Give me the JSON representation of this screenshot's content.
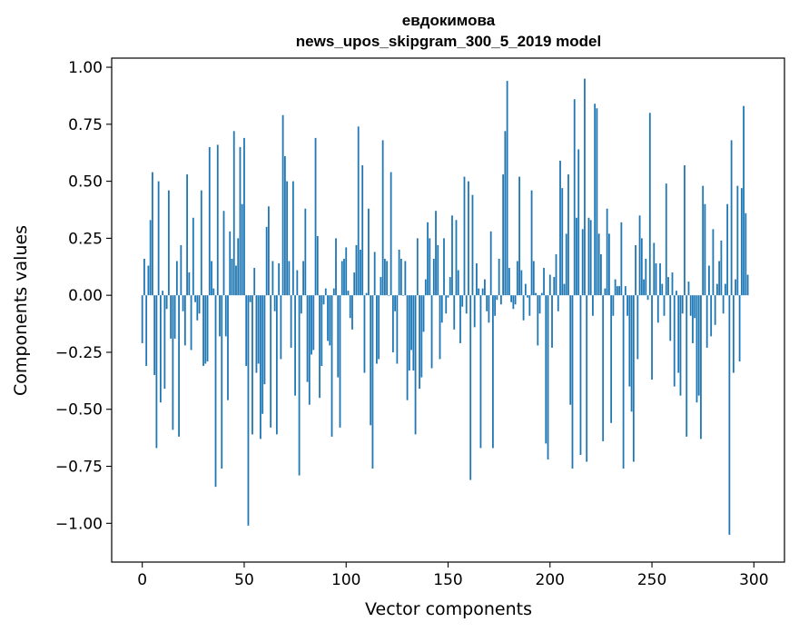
{
  "chart_data": {
    "type": "bar",
    "title_line1": "евдокимова",
    "title_line2": "news_upos_skipgram_300_5_2019 model",
    "xlabel": "Vector components",
    "ylabel": "Components values",
    "xlim": [
      -15,
      315
    ],
    "ylim": [
      -1.17,
      1.04
    ],
    "xticks": [
      0,
      50,
      100,
      150,
      200,
      250,
      300
    ],
    "yticks": [
      1.0,
      0.75,
      0.5,
      0.25,
      0.0,
      -0.25,
      -0.5,
      -0.75,
      -1.0
    ],
    "xtick_labels": [
      "0",
      "50",
      "100",
      "150",
      "200",
      "250",
      "300"
    ],
    "ytick_labels": [
      "1.00",
      "0.75",
      "0.50",
      "0.25",
      "0.00",
      "−0.25",
      "−0.50",
      "−0.75",
      "−1.00"
    ],
    "color": "#1f77b4",
    "values": [
      -0.21,
      0.16,
      -0.31,
      0.13,
      0.33,
      0.54,
      -0.35,
      -0.67,
      0.5,
      -0.47,
      0.02,
      -0.41,
      -0.06,
      0.46,
      -0.19,
      -0.59,
      -0.19,
      0.15,
      -0.62,
      0.22,
      -0.07,
      -0.22,
      0.53,
      0.1,
      -0.24,
      0.34,
      -0.03,
      -0.11,
      -0.08,
      0.46,
      -0.31,
      -0.3,
      -0.29,
      0.65,
      0.15,
      0.03,
      -0.84,
      0.66,
      -0.18,
      -0.76,
      0.37,
      -0.18,
      -0.46,
      0.28,
      0.16,
      0.72,
      0.13,
      0.25,
      0.65,
      0.4,
      0.69,
      -0.31,
      -1.01,
      -0.03,
      -0.61,
      0.12,
      -0.34,
      -0.3,
      -0.63,
      -0.52,
      -0.39,
      0.3,
      0.39,
      -0.58,
      0.15,
      -0.07,
      -0.61,
      0.14,
      -0.28,
      0.79,
      0.61,
      0.5,
      0.15,
      -0.23,
      0.5,
      -0.44,
      0.11,
      -0.79,
      -0.08,
      0.15,
      0.38,
      -0.38,
      -0.48,
      -0.26,
      -0.24,
      0.69,
      0.26,
      -0.45,
      -0.31,
      -0.04,
      0.03,
      -0.2,
      -0.22,
      -0.62,
      0.03,
      0.25,
      -0.36,
      -0.58,
      0.15,
      0.16,
      0.21,
      0.02,
      -0.1,
      -0.15,
      0.1,
      0.22,
      0.74,
      0.2,
      0.57,
      -0.34,
      0.01,
      0.38,
      -0.57,
      -0.76,
      0.19,
      -0.3,
      -0.28,
      0.08,
      0.68,
      0.16,
      0.15,
      0.0,
      0.54,
      -0.25,
      -0.07,
      -0.3,
      0.2,
      0.16,
      0.0,
      0.15,
      -0.46,
      -0.33,
      -0.24,
      -0.33,
      -0.61,
      0.25,
      -0.41,
      -0.36,
      -0.16,
      0.07,
      0.32,
      0.25,
      -0.32,
      0.16,
      0.37,
      0.22,
      -0.28,
      -0.12,
      0.25,
      -0.08,
      -0.01,
      0.08,
      0.35,
      -0.15,
      0.33,
      0.11,
      -0.21,
      -0.05,
      0.52,
      -0.08,
      0.5,
      -0.81,
      0.44,
      -0.14,
      0.14,
      0.03,
      -0.67,
      0.03,
      0.07,
      -0.07,
      -0.12,
      0.28,
      -0.67,
      -0.09,
      -0.02,
      0.16,
      -0.04,
      0.53,
      0.72,
      0.94,
      0.12,
      -0.03,
      -0.06,
      -0.04,
      0.15,
      0.52,
      0.11,
      -0.11,
      0.05,
      -0.01,
      -0.09,
      0.46,
      0.15,
      0.01,
      -0.22,
      -0.08,
      0.01,
      0.12,
      -0.65,
      -0.72,
      0.09,
      -0.23,
      0.08,
      0.18,
      -0.07,
      0.59,
      0.47,
      0.05,
      0.27,
      0.53,
      -0.48,
      -0.76,
      0.86,
      0.34,
      0.64,
      -0.7,
      0.29,
      0.95,
      -0.73,
      0.34,
      0.33,
      -0.09,
      0.84,
      0.82,
      0.27,
      0.18,
      -0.64,
      0.03,
      0.38,
      0.27,
      -0.56,
      -0.09,
      0.07,
      0.04,
      0.04,
      0.32,
      -0.76,
      0.04,
      -0.09,
      -0.4,
      -0.51,
      -0.73,
      0.22,
      -0.28,
      0.35,
      0.25,
      0.07,
      0.16,
      -0.02,
      0.8,
      -0.37,
      0.23,
      0.14,
      -0.12,
      0.14,
      0.05,
      -0.09,
      0.49,
      0.08,
      -0.2,
      0.1,
      -0.4,
      0.02,
      -0.34,
      -0.44,
      -0.08,
      0.57,
      -0.62,
      0.06,
      -0.09,
      -0.21,
      -0.1,
      -0.47,
      -0.44,
      -0.63,
      0.48,
      0.4,
      -0.23,
      0.13,
      -0.18,
      0.29,
      -0.13,
      0.05,
      0.15,
      0.24,
      -0.08,
      0.05,
      0.4,
      -1.05,
      0.68,
      -0.34,
      0.07,
      0.48,
      -0.29,
      0.47,
      0.83,
      0.36,
      0.09
    ]
  }
}
